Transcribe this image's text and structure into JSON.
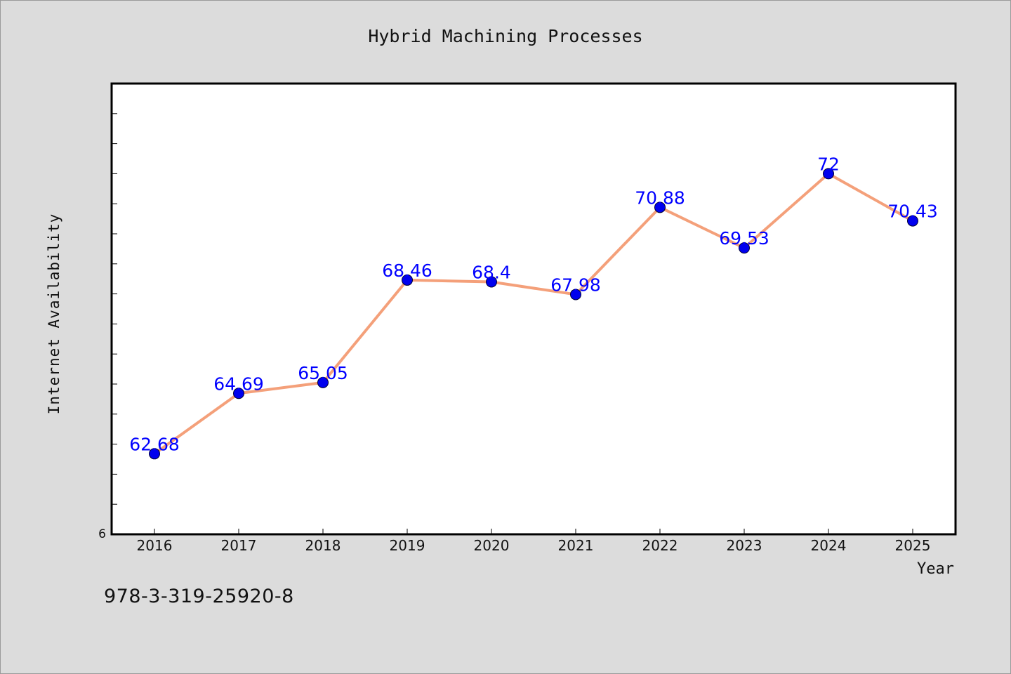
{
  "chart_data": {
    "type": "line",
    "title": "Hybrid Machining Processes",
    "xlabel": "Year",
    "ylabel": "Internet Availability",
    "categories": [
      "2016",
      "2017",
      "2018",
      "2019",
      "2020",
      "2021",
      "2022",
      "2023",
      "2024",
      "2025"
    ],
    "series": [
      {
        "values": [
          62.68,
          64.69,
          65.05,
          68.46,
          68.4,
          67.98,
          70.88,
          69.53,
          72,
          70.43
        ],
        "labels": [
          "62.68",
          "64.69",
          "65.05",
          "68.46",
          "68.4",
          "67.98",
          "70.88",
          "69.53",
          "72",
          "70.43"
        ]
      }
    ],
    "ylim": [
      60,
      75
    ],
    "y_tick_label": "6",
    "grid": false,
    "legend": "none",
    "colors": {
      "line": "#f4a07a",
      "marker": "#0000ee",
      "data_label": "#0000ff",
      "plot_bg": "#ffffff",
      "page_bg": "#dcdcdc"
    }
  },
  "footer": {
    "isbn": "978-3-319-25920-8"
  }
}
